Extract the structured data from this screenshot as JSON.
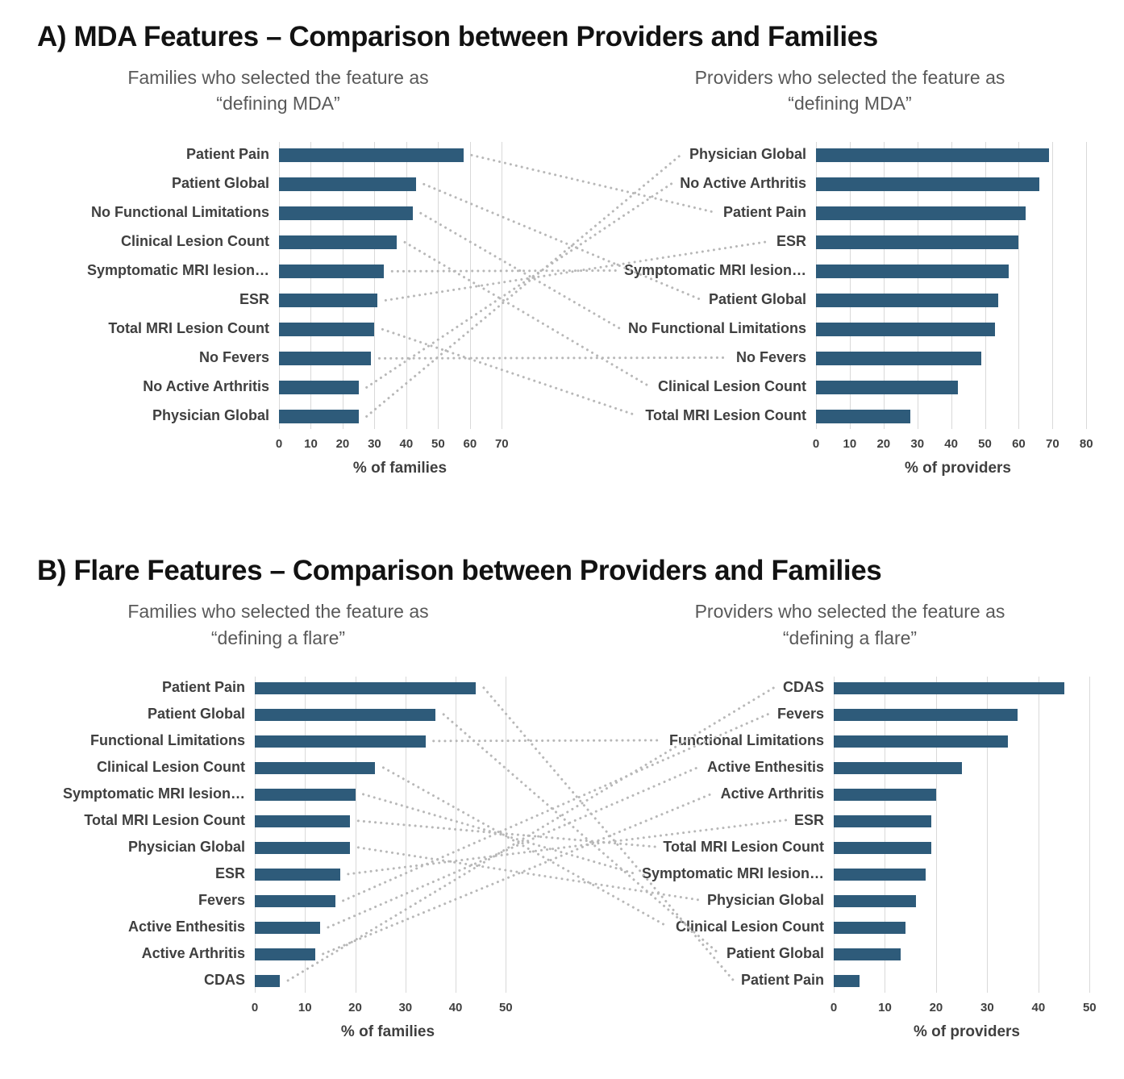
{
  "style": {
    "bar_color": "#2e5b7a",
    "connector_color": "#b8b8b8",
    "gridline_color": "#d9d9d9",
    "subtitle_color": "#595959",
    "label_color": "#3f3f3f"
  },
  "panels": [
    {
      "id": "A",
      "title": "A) MDA Features – Comparison between Providers and Families"
    },
    {
      "id": "B",
      "title": "B) Flare Features – Comparison between Providers and Families"
    }
  ],
  "chart_data": [
    {
      "type": "bar",
      "orientation": "horizontal",
      "panel": "A",
      "side": "left",
      "title": "Families who selected the feature as “defining MDA”",
      "title_lines": [
        "Families who selected the feature as",
        "“defining MDA”"
      ],
      "xlabel": "% of families",
      "xticks": [
        0,
        10,
        20,
        30,
        40,
        50,
        60,
        70
      ],
      "xlim": [
        0,
        76
      ],
      "grid": true,
      "categories": [
        "Patient Pain",
        "Patient Global",
        "No Functional Limitations",
        "Clinical Lesion Count",
        "Symptomatic MRI lesion…",
        "ESR",
        "Total MRI Lesion Count",
        "No Fevers",
        "No Active Arthritis",
        "Physician Global"
      ],
      "values": [
        58,
        43,
        42,
        37,
        33,
        31,
        30,
        29,
        25,
        25
      ]
    },
    {
      "type": "bar",
      "orientation": "horizontal",
      "panel": "A",
      "side": "right",
      "title": "Providers who selected the feature as “defining MDA”",
      "title_lines": [
        "Providers who selected the feature as",
        "“defining MDA”"
      ],
      "xlabel": "% of providers",
      "xticks": [
        0,
        10,
        20,
        30,
        40,
        50,
        60,
        70,
        80
      ],
      "xlim": [
        0,
        84
      ],
      "grid": true,
      "categories": [
        "Physician Global",
        "No Active Arthritis",
        "Patient Pain",
        "ESR",
        "Symptomatic MRI lesion…",
        "Patient Global",
        "No Functional Limitations",
        "No Fevers",
        "Clinical Lesion Count",
        "Total MRI Lesion Count"
      ],
      "values": [
        69,
        66,
        62,
        60,
        57,
        54,
        53,
        49,
        42,
        28
      ]
    },
    {
      "type": "bar",
      "orientation": "horizontal",
      "panel": "B",
      "side": "left",
      "title": "Families who selected the feature as “defining a flare”",
      "title_lines": [
        "Families who selected the feature as",
        "“defining a flare”"
      ],
      "xlabel": "% of families",
      "xticks": [
        0,
        10,
        20,
        30,
        40,
        50
      ],
      "xlim": [
        0,
        53
      ],
      "grid": true,
      "categories": [
        "Patient Pain",
        "Patient Global",
        "Functional Limitations",
        "Clinical Lesion Count",
        "Symptomatic MRI lesion…",
        "Total MRI Lesion Count",
        "Physician Global",
        "ESR",
        "Fevers",
        "Active Enthesitis",
        "Active Arthritis",
        "CDAS"
      ],
      "values": [
        44,
        36,
        34,
        24,
        20,
        19,
        19,
        17,
        16,
        13,
        12,
        5
      ]
    },
    {
      "type": "bar",
      "orientation": "horizontal",
      "panel": "B",
      "side": "right",
      "title": "Providers who selected the feature as “defining a flare”",
      "title_lines": [
        "Providers who selected the feature as",
        "“defining a flare”"
      ],
      "xlabel": "% of providers",
      "xticks": [
        0,
        10,
        20,
        30,
        40,
        50
      ],
      "xlim": [
        0,
        52
      ],
      "grid": true,
      "categories": [
        "CDAS",
        "Fevers",
        "Functional Limitations",
        "Active Enthesitis",
        "Active Arthritis",
        "ESR",
        "Total MRI Lesion Count",
        "Symptomatic MRI lesion…",
        "Physician Global",
        "Clinical Lesion Count",
        "Patient Global",
        "Patient Pain"
      ],
      "values": [
        45,
        36,
        34,
        25,
        20,
        19,
        19,
        18,
        16,
        14,
        13,
        5
      ]
    }
  ]
}
